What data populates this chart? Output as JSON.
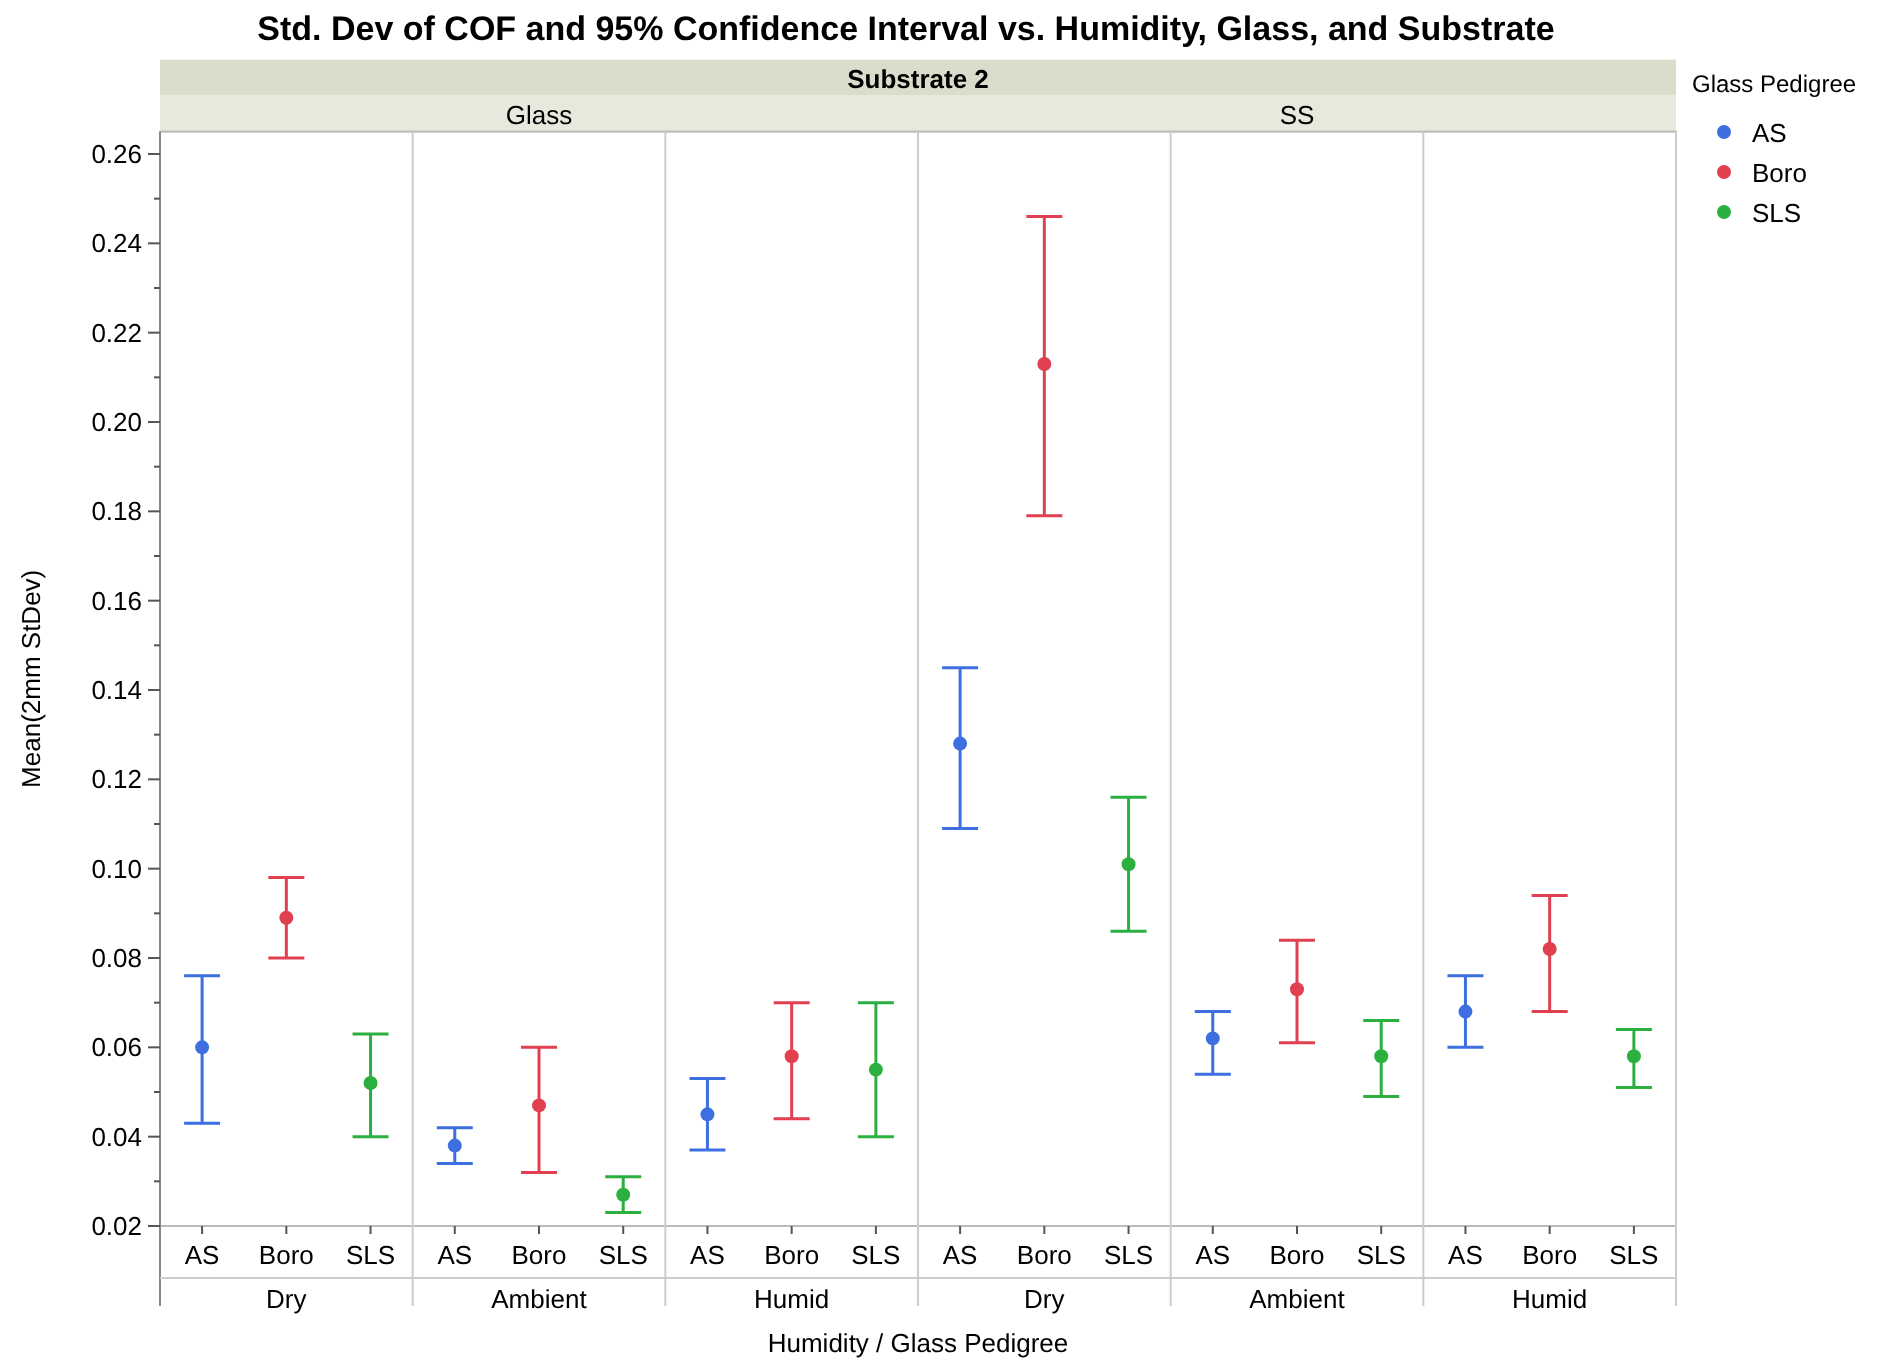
{
  "chart_data": {
    "type": "scatter",
    "title": "Std. Dev of COF and 95% Confidence Interval vs. Humidity, Glass, and Substrate",
    "xlabel": "Humidity / Glass Pedigree",
    "ylabel": "Mean(2mm StDev)",
    "legend_title": "Glass Pedigree",
    "legend": "top right",
    "marker": "circle",
    "categories": [
      "AS",
      "Boro",
      "SLS",
      "AS",
      "Boro",
      "SLS",
      "AS",
      "Boro",
      "SLS",
      "AS",
      "Boro",
      "SLS",
      "AS",
      "Boro",
      "SLS",
      "AS",
      "Boro",
      "SLS"
    ],
    "annotations": [
      "Substrate 2",
      "Glass",
      "SS",
      "Dry",
      "Ambient",
      "Humid",
      "Dry",
      "Ambient",
      "Humid"
    ],
    "ylim": [
      0.02,
      0.265
    ],
    "yticks": [
      0.02,
      {
        "value": 0.03,
        "label": null
      },
      0.04,
      {
        "value": 0.05,
        "label": null
      },
      0.06,
      {
        "value": 0.07,
        "label": null
      },
      0.08,
      {
        "value": 0.09,
        "label": null
      },
      "0.10",
      {
        "value": 0.11,
        "label": null
      },
      0.12,
      {
        "value": 0.13,
        "label": null
      },
      0.14,
      {
        "value": 0.15,
        "label": null
      },
      0.16,
      {
        "value": 0.17,
        "label": null
      },
      0.18,
      {
        "value": 0.19,
        "label": null
      },
      "0.20",
      {
        "value": 0.21,
        "label": null
      },
      0.22,
      {
        "value": 0.23,
        "label": null
      },
      0.24,
      {
        "value": 0.25,
        "label": null
      },
      0.26
    ],
    "series": [
      {
        "name": "AS",
        "color": "#3d6fe0",
        "values": [
          0.06,
          null,
          null,
          0.038,
          null,
          null,
          0.045,
          null,
          null,
          0.128,
          null,
          null,
          0.062,
          null,
          null,
          0.068,
          null,
          null
        ],
        "errors": [
          [
            0.043,
            0.076
          ],
          null,
          null,
          [
            0.034,
            0.042
          ],
          null,
          null,
          [
            0.037,
            0.053
          ],
          null,
          null,
          [
            0.109,
            0.145
          ],
          null,
          null,
          [
            0.054,
            0.068
          ],
          null,
          null,
          [
            0.06,
            0.076
          ],
          null,
          null
        ]
      },
      {
        "name": "Boro",
        "color": "#e0404f",
        "values": [
          null,
          0.089,
          null,
          null,
          0.047,
          null,
          null,
          0.058,
          null,
          null,
          0.213,
          null,
          null,
          0.073,
          null,
          null,
          0.082,
          null
        ],
        "errors": [
          null,
          [
            0.08,
            0.098
          ],
          null,
          null,
          [
            0.032,
            0.06
          ],
          null,
          null,
          [
            0.044,
            0.07
          ],
          null,
          null,
          [
            0.179,
            0.246
          ],
          null,
          null,
          [
            0.061,
            0.084
          ],
          null,
          null,
          [
            0.068,
            0.094
          ],
          null
        ]
      },
      {
        "name": "SLS",
        "color": "#2bb040",
        "values": [
          null,
          null,
          0.052,
          null,
          null,
          0.027,
          null,
          null,
          0.055,
          null,
          null,
          0.101,
          null,
          null,
          0.058,
          null,
          null,
          0.058
        ],
        "errors": [
          null,
          null,
          [
            0.04,
            0.063
          ],
          null,
          null,
          [
            0.023,
            0.031
          ],
          null,
          null,
          [
            0.04,
            0.07
          ],
          null,
          null,
          [
            0.086,
            0.116
          ],
          null,
          null,
          [
            0.049,
            0.066
          ],
          null,
          null,
          [
            0.051,
            0.064
          ]
        ]
      }
    ]
  }
}
